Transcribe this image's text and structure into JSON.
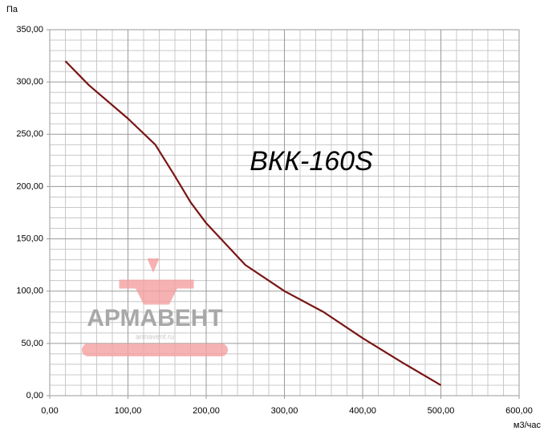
{
  "chart_data": {
    "type": "line",
    "title": "ВКК-160S",
    "xlabel": "м3/час",
    "ylabel": "Па",
    "watermark": "АРМАВЕНТ",
    "watermark_sub": "armavent.ru",
    "series": [
      {
        "color": "#7a1414",
        "x": [
          20,
          50,
          100,
          135,
          160,
          180,
          200,
          250,
          300,
          350,
          400,
          450,
          500
        ],
        "values": [
          320,
          297,
          265,
          240,
          210,
          185,
          165,
          125,
          100,
          80,
          55,
          32,
          10
        ]
      }
    ],
    "xlim": [
      0,
      600
    ],
    "ylim": [
      0,
      350
    ],
    "xticks": [
      {
        "value": 0,
        "label": "0,00"
      },
      {
        "value": 100,
        "label": "100,00"
      },
      {
        "value": 200,
        "label": "200,00"
      },
      {
        "value": 300,
        "label": "300,00"
      },
      {
        "value": 400,
        "label": "400,00"
      },
      {
        "value": 500,
        "label": "500,00"
      },
      {
        "value": 600,
        "label": "600,00"
      }
    ],
    "yticks": [
      {
        "value": 0,
        "label": "0,00"
      },
      {
        "value": 50,
        "label": "50,00"
      },
      {
        "value": 100,
        "label": "100,00"
      },
      {
        "value": 150,
        "label": "150,00"
      },
      {
        "value": 200,
        "label": "200,00"
      },
      {
        "value": 250,
        "label": "250,00"
      },
      {
        "value": 300,
        "label": "300,00"
      },
      {
        "value": 350,
        "label": "350,00"
      }
    ],
    "xgrid": [
      20,
      40,
      60,
      80,
      120,
      140,
      160,
      180,
      220,
      240,
      260,
      280,
      320,
      340,
      360,
      380,
      420,
      440,
      460,
      480,
      520,
      540,
      560,
      580
    ],
    "ygrid": [
      10,
      20,
      30,
      40,
      60,
      70,
      80,
      90,
      110,
      120,
      130,
      140,
      160,
      170,
      180,
      190,
      210,
      220,
      230,
      240,
      260,
      270,
      280,
      290,
      310,
      320,
      330,
      340
    ],
    "grid": true
  }
}
